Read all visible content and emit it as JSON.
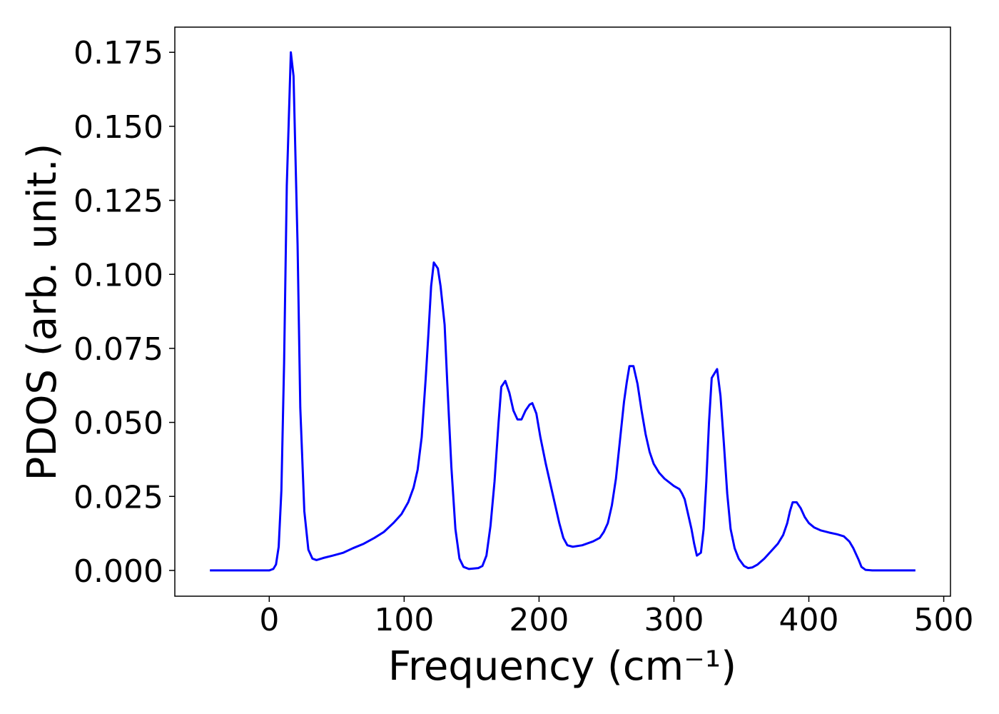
{
  "chart_data": {
    "type": "line",
    "xlabel": "Frequency (cm⁻¹)",
    "ylabel": "PDOS (arb. unit.)",
    "xlim": [
      -70,
      505
    ],
    "ylim": [
      -0.0087,
      0.1835
    ],
    "xticks": [
      0,
      100,
      200,
      300,
      400,
      500
    ],
    "yticks": [
      {
        "value": 0,
        "label": "0.000"
      },
      {
        "value": 0.025,
        "label": "0.025"
      },
      {
        "value": 0.05,
        "label": "0.050"
      },
      {
        "value": 0.075,
        "label": "0.075"
      },
      {
        "value": 0.1,
        "label": "0.100"
      },
      {
        "value": 0.125,
        "label": "0.125"
      },
      {
        "value": 0.15,
        "label": "0.150"
      },
      {
        "value": 0.175,
        "label": "0.175"
      }
    ],
    "grid": false,
    "series": [
      {
        "color": "#0000ff",
        "x": [
          -44,
          0,
          3,
          5,
          7,
          9,
          11,
          13,
          16,
          18,
          21,
          23,
          26,
          29,
          32,
          35,
          40,
          47,
          55,
          62,
          70,
          78,
          85,
          92,
          98,
          103,
          107,
          110,
          113,
          116,
          118,
          120,
          122,
          125,
          127,
          130,
          132,
          135,
          138,
          141,
          144,
          148,
          155,
          158,
          161,
          164,
          167,
          170,
          172,
          175,
          178,
          181,
          184,
          187,
          190,
          193,
          195,
          198,
          201,
          205,
          210,
          215,
          218,
          221,
          225,
          232,
          240,
          245,
          248,
          251,
          254,
          257,
          260,
          263,
          265,
          267,
          270,
          273,
          276,
          279,
          282,
          285,
          289,
          293,
          300,
          304,
          306,
          308,
          310,
          313,
          315,
          317,
          320,
          322,
          324,
          326,
          328,
          332,
          334.5,
          337,
          339.5,
          342,
          345,
          348,
          352,
          355,
          358,
          362,
          367,
          372,
          377,
          381,
          384,
          386,
          388,
          391,
          394,
          397,
          400,
          404,
          409,
          415,
          421,
          426,
          430,
          433,
          437,
          439,
          442,
          447,
          479
        ],
        "values": [
          0,
          0,
          0.0005,
          0.002,
          0.008,
          0.027,
          0.07,
          0.13,
          0.175,
          0.167,
          0.11,
          0.055,
          0.02,
          0.007,
          0.004,
          0.0035,
          0.0042,
          0.005,
          0.006,
          0.0075,
          0.009,
          0.011,
          0.013,
          0.016,
          0.019,
          0.023,
          0.028,
          0.034,
          0.045,
          0.065,
          0.08,
          0.096,
          0.104,
          0.102,
          0.096,
          0.083,
          0.063,
          0.035,
          0.014,
          0.004,
          0.0012,
          0.0005,
          0.0008,
          0.0015,
          0.005,
          0.015,
          0.03,
          0.05,
          0.062,
          0.064,
          0.06,
          0.054,
          0.051,
          0.051,
          0.054,
          0.056,
          0.0565,
          0.053,
          0.045,
          0.036,
          0.026,
          0.016,
          0.011,
          0.0085,
          0.008,
          0.0085,
          0.0098,
          0.011,
          0.013,
          0.016,
          0.022,
          0.031,
          0.044,
          0.057,
          0.0635,
          0.069,
          0.069,
          0.063,
          0.054,
          0.046,
          0.04,
          0.036,
          0.033,
          0.031,
          0.0285,
          0.0275,
          0.026,
          0.024,
          0.02,
          0.014,
          0.009,
          0.005,
          0.006,
          0.014,
          0.03,
          0.05,
          0.065,
          0.068,
          0.059,
          0.043,
          0.026,
          0.014,
          0.0075,
          0.004,
          0.0015,
          0.0008,
          0.001,
          0.002,
          0.004,
          0.0065,
          0.009,
          0.012,
          0.016,
          0.02,
          0.023,
          0.023,
          0.021,
          0.018,
          0.016,
          0.0145,
          0.0135,
          0.0128,
          0.0122,
          0.0115,
          0.0098,
          0.0075,
          0.0035,
          0.0012,
          0.0002,
          0,
          0
        ]
      }
    ]
  }
}
